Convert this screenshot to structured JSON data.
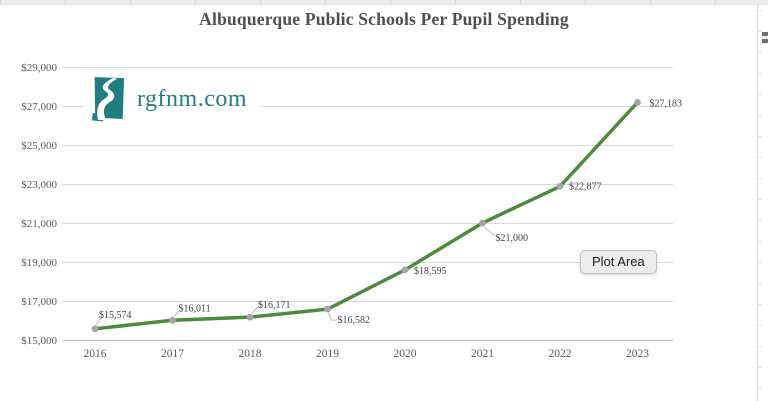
{
  "chart": {
    "tooltip": "Plot Area"
  },
  "logo": {
    "text": "rgfnm.com",
    "color": "#1f7e81"
  },
  "chart_data": {
    "type": "line",
    "title": "Albuquerque Public Schools Per Pupil Spending",
    "categories": [
      "2016",
      "2017",
      "2018",
      "2019",
      "2020",
      "2021",
      "2022",
      "2023"
    ],
    "series": [
      {
        "name": "Per Pupil Spending",
        "values": [
          15574,
          16011,
          16171,
          16582,
          18595,
          21000,
          22877,
          27183
        ],
        "labels": [
          "$15,574",
          "$16,011",
          "$16,171",
          "$16,582",
          "$18,595",
          "$21,000",
          "$22,877",
          "$27,183"
        ]
      }
    ],
    "xlabel": "",
    "ylabel": "",
    "ylim": [
      15000,
      29000
    ],
    "ytick_values": [
      15000,
      17000,
      19000,
      21000,
      23000,
      25000,
      27000,
      29000
    ],
    "ytick_labels": [
      "$15,000",
      "$17,000",
      "$19,000",
      "$21,000",
      "$23,000",
      "$25,000",
      "$27,000",
      "$29,000"
    ],
    "grid": true,
    "legend": "none",
    "colors": {
      "line": "#4c8a3c",
      "marker": "#a6a6a6",
      "grid": "#d9d9d9",
      "axis_line": "#bfbfbf",
      "axis_text": "#595959",
      "label_text": "#3f3f3f",
      "leader": "#a6a6a6"
    }
  }
}
